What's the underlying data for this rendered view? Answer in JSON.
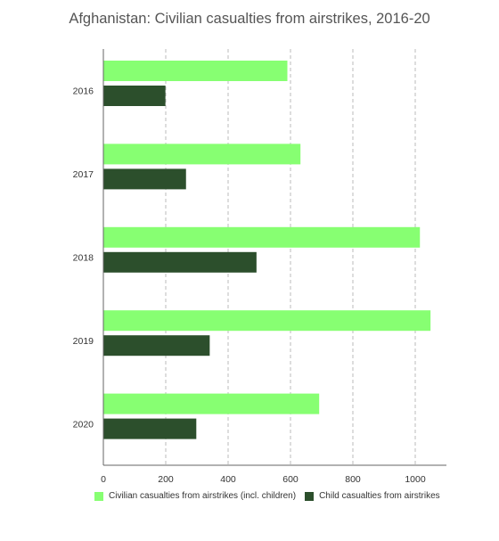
{
  "chart_data": {
    "type": "bar",
    "orientation": "horizontal",
    "title": "Afghanistan: Civilian casualties from airstrikes, 2016-20",
    "categories": [
      "2016",
      "2017",
      "2018",
      "2019",
      "2020"
    ],
    "series": [
      {
        "name": "Civilian casualties from airstrikes (incl. children)",
        "color": "#87ff72",
        "values": [
          590,
          632,
          1015,
          1049,
          692
        ]
      },
      {
        "name": "Child casualties from airstrikes",
        "color": "#2c4f2c",
        "values": [
          199,
          265,
          491,
          341,
          298
        ]
      }
    ],
    "xlim": [
      0,
      1100
    ],
    "xticks": [
      0,
      200,
      400,
      600,
      800,
      1000
    ],
    "grid": true,
    "legend_position": "bottom-left"
  }
}
